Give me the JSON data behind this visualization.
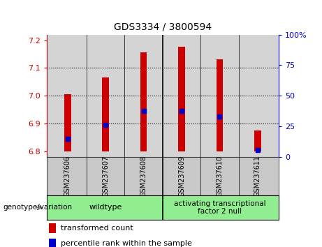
{
  "title": "GDS3334 / 3800594",
  "samples": [
    "GSM237606",
    "GSM237607",
    "GSM237608",
    "GSM237609",
    "GSM237610",
    "GSM237611"
  ],
  "bar_bottoms": [
    6.8,
    6.8,
    6.8,
    6.8,
    6.8,
    6.8
  ],
  "bar_tops": [
    7.005,
    7.065,
    7.155,
    7.175,
    7.13,
    6.875
  ],
  "percentile_values": [
    6.845,
    6.895,
    6.945,
    6.945,
    6.925,
    6.805
  ],
  "ylim_left": [
    6.78,
    7.22
  ],
  "ylim_right": [
    0,
    100
  ],
  "yticks_left": [
    6.8,
    6.9,
    7.0,
    7.1,
    7.2
  ],
  "yticks_right": [
    0,
    25,
    50,
    75,
    100
  ],
  "ytick_labels_right": [
    "0",
    "25",
    "50",
    "75",
    "100%"
  ],
  "grid_values": [
    6.9,
    7.0,
    7.1
  ],
  "bar_color": "#cc0000",
  "dot_color": "#0000cc",
  "plot_bg_color": "#d4d4d4",
  "label_bg_color": "#c8c8c8",
  "group_bg_color": "#90ee90",
  "group1_label": "wildtype",
  "group2_label": "activating transcriptional\nfactor 2 null",
  "legend_red_label": "transformed count",
  "legend_blue_label": "percentile rank within the sample",
  "genotype_label": "genotype/variation",
  "bar_width": 0.18,
  "title_fontsize": 10,
  "tick_fontsize": 8,
  "sample_fontsize": 7,
  "legend_fontsize": 8,
  "group_fontsize": 8
}
